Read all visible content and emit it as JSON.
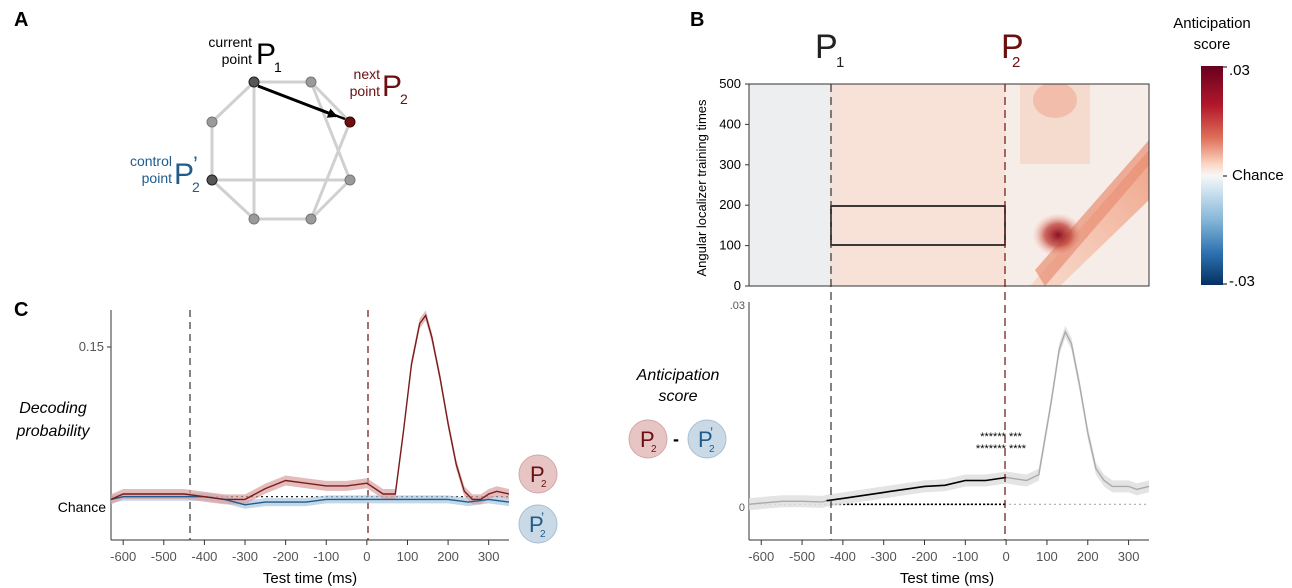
{
  "panels": {
    "a": "A",
    "b": "B",
    "c": "C"
  },
  "panel_a": {
    "current_line1": "current",
    "current_line2": "point",
    "p1": "P",
    "p1_sub": "1",
    "next_line1": "next",
    "next_line2": "point",
    "p2": "P",
    "p2_sub": "2",
    "control_line1": "control",
    "control_line2": "point",
    "p2c": "P",
    "p2c_sub": "2",
    "p2c_prime": "’"
  },
  "panel_b": {
    "p1": "P",
    "p1_sub": "1",
    "p2": "P",
    "p2_sub": "2",
    "heatmap_ylabel": "Angular localizer training times",
    "heatmap_yticks": [
      0,
      100,
      200,
      300,
      400,
      500
    ],
    "colorbar_title_line1": "Anticipation",
    "colorbar_title_line2": "score",
    "colorbar_top": ".03",
    "colorbar_mid": "Chance",
    "colorbar_bottom": "-.03",
    "lower_ytick_top": ".03",
    "lower_ytick_zero": "0",
    "antic_label_line1": "Anticipation",
    "antic_label_line2": "score",
    "minus": "-",
    "stars_row1": "******   ***",
    "stars_row2": "******* ****",
    "xlabel": "Test time (ms)",
    "xticks": [
      -600,
      -500,
      -400,
      -300,
      -200,
      -100,
      0,
      100,
      200,
      300
    ]
  },
  "panel_c": {
    "ytick_015": "0.15",
    "ytick_chance": "Chance",
    "ylabel_line1": "Decoding",
    "ylabel_line2": "probability",
    "legend_p2": "P",
    "legend_p2_sub": "2",
    "legend_p2c": "P",
    "legend_p2c_sub": "2",
    "legend_p2c_prime": "’",
    "xlabel": "Test time (ms)",
    "xticks": [
      -600,
      -500,
      -400,
      -300,
      -200,
      -100,
      0,
      100,
      200,
      300
    ]
  },
  "colors": {
    "p1": "#222222",
    "p2": "#6b1010",
    "control": "#1f5b8c",
    "p2_line": "#7a1c1c",
    "p2_band": "#d9a0a0",
    "ctrl_line": "#1f5b8c",
    "ctrl_band": "#a8c6de",
    "grey_line": "#aaaaaa",
    "black_line": "#000000"
  },
  "chart_data": [
    {
      "type": "line",
      "panel": "C",
      "xlabel": "Test time (ms)",
      "ylabel": "Decoding probability",
      "xlim": [
        -630,
        350
      ],
      "ylim": [
        0.095,
        0.18
      ],
      "events": [
        {
          "name": "P1",
          "x": -440
        },
        {
          "name": "P2",
          "x": 0
        }
      ],
      "chance": 0.111,
      "series": [
        {
          "name": "P2",
          "x": [
            -630,
            -600,
            -550,
            -500,
            -450,
            -400,
            -350,
            -300,
            -250,
            -200,
            -150,
            -100,
            -50,
            0,
            40,
            70,
            90,
            110,
            130,
            145,
            160,
            180,
            200,
            220,
            240,
            260,
            280,
            300,
            320,
            350
          ],
          "values": [
            0.11,
            0.112,
            0.112,
            0.112,
            0.112,
            0.111,
            0.11,
            0.11,
            0.114,
            0.117,
            0.116,
            0.115,
            0.115,
            0.116,
            0.112,
            0.112,
            0.135,
            0.16,
            0.175,
            0.178,
            0.17,
            0.155,
            0.138,
            0.123,
            0.113,
            0.11,
            0.11,
            0.112,
            0.113,
            0.112
          ]
        },
        {
          "name": "P2’",
          "x": [
            -630,
            -600,
            -550,
            -500,
            -450,
            -400,
            -350,
            -300,
            -250,
            -200,
            -150,
            -100,
            -50,
            0,
            50,
            100,
            150,
            200,
            250,
            300,
            350
          ],
          "values": [
            0.11,
            0.111,
            0.111,
            0.111,
            0.111,
            0.111,
            0.11,
            0.108,
            0.109,
            0.109,
            0.109,
            0.11,
            0.11,
            0.11,
            0.11,
            0.11,
            0.11,
            0.11,
            0.109,
            0.11,
            0.109
          ]
        }
      ]
    },
    {
      "type": "line",
      "panel": "B-lower",
      "xlabel": "Test time (ms)",
      "ylabel": "Anticipation score",
      "xlim": [
        -630,
        350
      ],
      "ylim": [
        -0.006,
        0.034
      ],
      "events": [
        {
          "name": "P1",
          "x": -440
        },
        {
          "name": "P2",
          "x": 0
        }
      ],
      "series": [
        {
          "name": "score",
          "x": [
            -630,
            -600,
            -550,
            -500,
            -450,
            -440,
            -400,
            -350,
            -300,
            -250,
            -200,
            -150,
            -100,
            -50,
            0,
            50,
            80,
            110,
            130,
            145,
            160,
            180,
            200,
            220,
            240,
            260,
            280,
            300,
            320,
            350
          ],
          "values": [
            0.0,
            0.0002,
            0.0005,
            0.0005,
            0.0004,
            0.0006,
            0.001,
            0.0015,
            0.002,
            0.0025,
            0.003,
            0.0032,
            0.004,
            0.004,
            0.0045,
            0.004,
            0.005,
            0.017,
            0.026,
            0.029,
            0.027,
            0.02,
            0.012,
            0.006,
            0.004,
            0.003,
            0.003,
            0.003,
            0.0025,
            0.003
          ]
        }
      ]
    },
    {
      "type": "heatmap",
      "panel": "B-upper",
      "ylabel": "Angular localizer training times",
      "xlim": [
        -630,
        350
      ],
      "ylim": [
        0,
        500
      ],
      "clim": [
        -0.03,
        0.03
      ],
      "box": {
        "x": [
          -440,
          0
        ],
        "y": [
          100,
          200
        ]
      }
    }
  ]
}
